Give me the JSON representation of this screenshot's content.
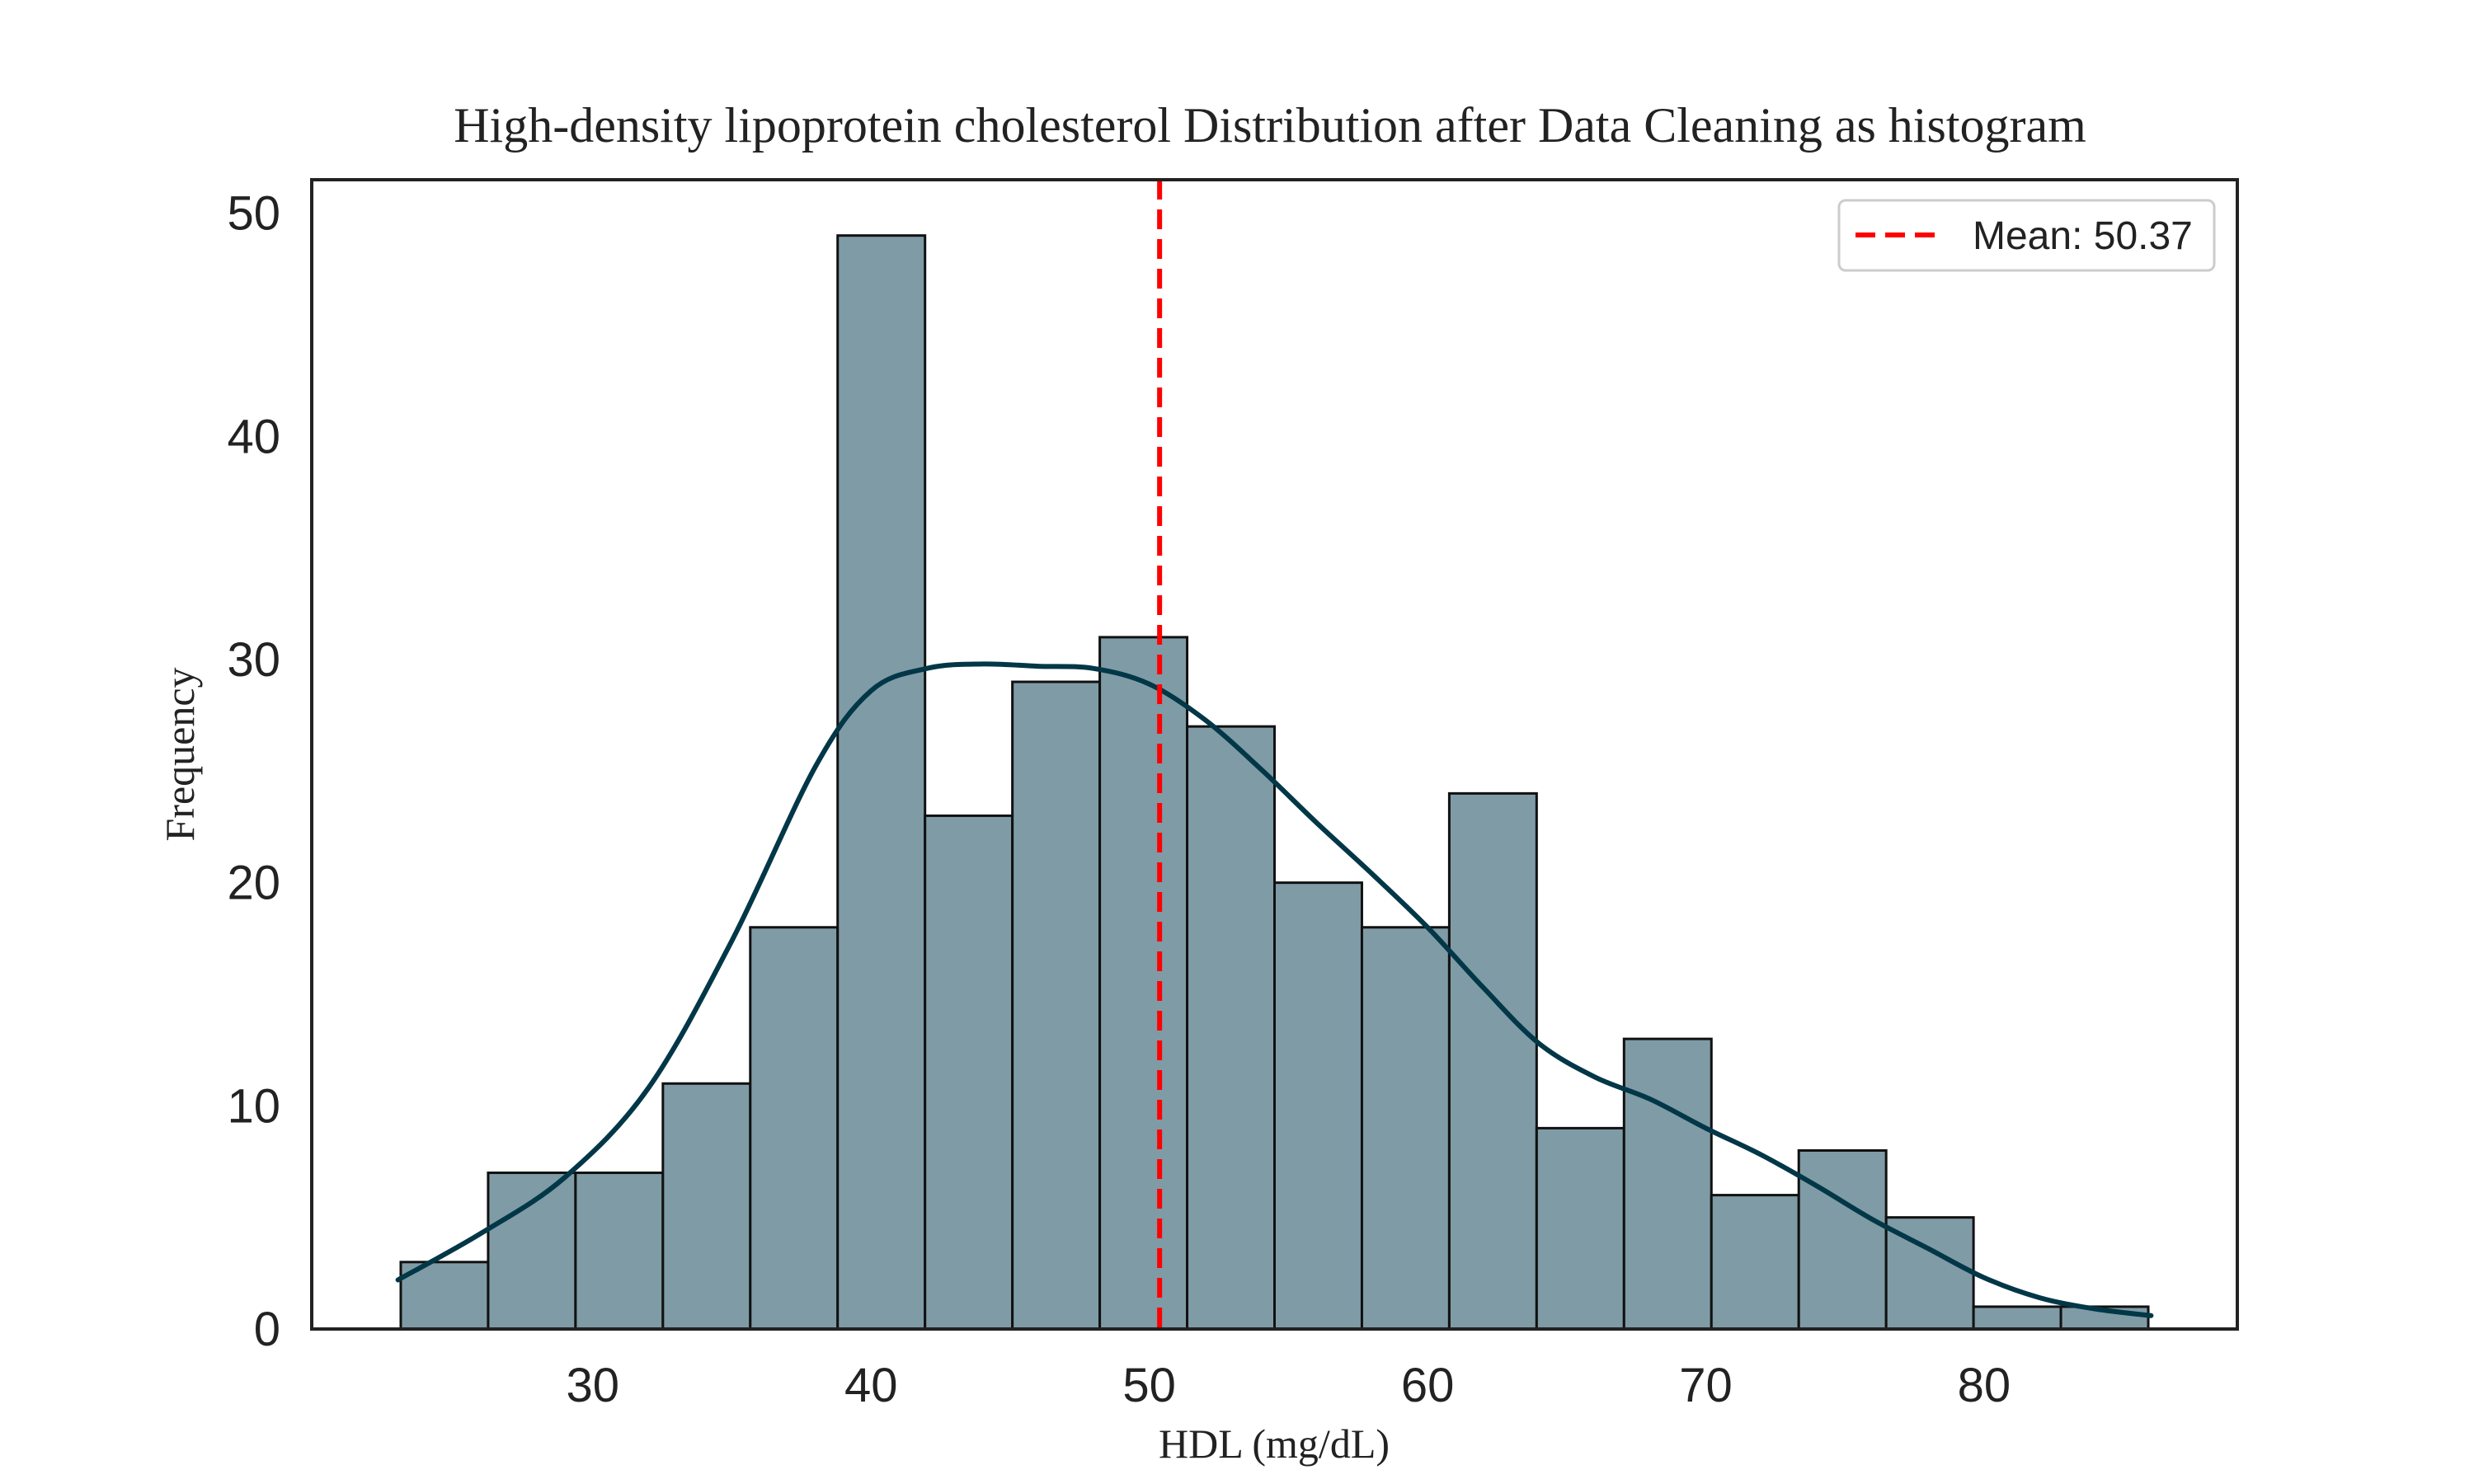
{
  "chart_data": {
    "type": "bar",
    "title": "High-density lipoprotein cholesterol Distribution after Data Cleaning as histogram",
    "xlabel": "HDL (mg/dL)",
    "ylabel": "Frequency",
    "xlim": [
      19.9,
      89.1
    ],
    "ylim": [
      0,
      51.5
    ],
    "xticks": [
      30,
      40,
      50,
      60,
      70,
      80
    ],
    "yticks": [
      0,
      10,
      20,
      30,
      40,
      50
    ],
    "grid": false,
    "bins": {
      "start": 23.1,
      "width": 3.14,
      "counts": [
        3,
        7,
        7,
        11,
        18,
        49,
        23,
        29,
        31,
        27,
        20,
        18,
        24,
        9,
        13,
        6,
        8,
        5,
        1,
        1
      ]
    },
    "kde": {
      "x": [
        23,
        26,
        29,
        32,
        35,
        38,
        40,
        42,
        44,
        46,
        48,
        50,
        52,
        54,
        56,
        58,
        60,
        62,
        64,
        66,
        68,
        70,
        72,
        74,
        76,
        78,
        80,
        82,
        84,
        86
      ],
      "y": [
        2.2,
        4.3,
        6.8,
        10.8,
        17.4,
        25.2,
        28.6,
        29.6,
        29.8,
        29.7,
        29.6,
        28.9,
        27.3,
        25.1,
        22.7,
        20.4,
        18.0,
        15.3,
        12.8,
        11.3,
        10.3,
        9.0,
        7.8,
        6.4,
        4.9,
        3.6,
        2.3,
        1.4,
        0.9,
        0.6
      ]
    },
    "mean_line": {
      "x": 50.37,
      "label": "Mean: 50.37"
    },
    "legend_position": "top-right",
    "colors": {
      "bar_fill": "#7f9ba6",
      "bar_edge": "#111111",
      "kde": "#023747",
      "mean": "#ff0000",
      "axes": "#222222"
    }
  }
}
